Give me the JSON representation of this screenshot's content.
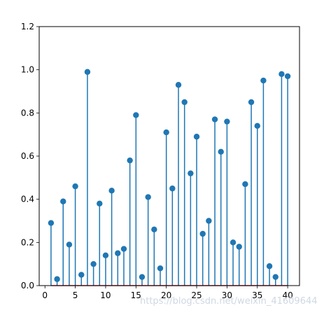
{
  "chart_data": {
    "type": "stem",
    "title": "",
    "xlabel": "",
    "ylabel": "",
    "xlim": [
      -0.95,
      41.95
    ],
    "ylim": [
      0,
      1.2
    ],
    "xticks": [
      0,
      5,
      10,
      15,
      20,
      25,
      30,
      35,
      40
    ],
    "xtick_labels": [
      "0",
      "5",
      "10",
      "15",
      "20",
      "25",
      "30",
      "35",
      "40"
    ],
    "yticks": [
      0.0,
      0.2,
      0.4,
      0.6,
      0.8,
      1.0,
      1.2
    ],
    "ytick_labels": [
      "0.0",
      "0.2",
      "0.4",
      "0.6",
      "0.8",
      "1.0",
      "1.2"
    ],
    "grid": false,
    "color": "#1f77b4",
    "x": [
      1,
      2,
      3,
      4,
      5,
      6,
      7,
      8,
      9,
      10,
      11,
      12,
      13,
      14,
      15,
      16,
      17,
      18,
      19,
      20,
      21,
      22,
      23,
      24,
      25,
      26,
      27,
      28,
      29,
      30,
      31,
      32,
      33,
      34,
      35,
      36,
      37,
      38,
      39,
      40
    ],
    "values": [
      0.29,
      0.03,
      0.39,
      0.19,
      0.46,
      0.05,
      0.99,
      0.1,
      0.38,
      0.14,
      0.44,
      0.15,
      0.17,
      0.58,
      0.79,
      0.04,
      0.41,
      0.26,
      0.08,
      0.71,
      0.45,
      0.93,
      0.85,
      0.52,
      0.69,
      0.24,
      0.3,
      0.77,
      0.62,
      0.76,
      0.2,
      0.18,
      0.47,
      0.85,
      0.74,
      0.95,
      0.09,
      0.04,
      0.98,
      0.97
    ]
  },
  "watermark": "https://blog.csdn.net/weixin_41609644"
}
